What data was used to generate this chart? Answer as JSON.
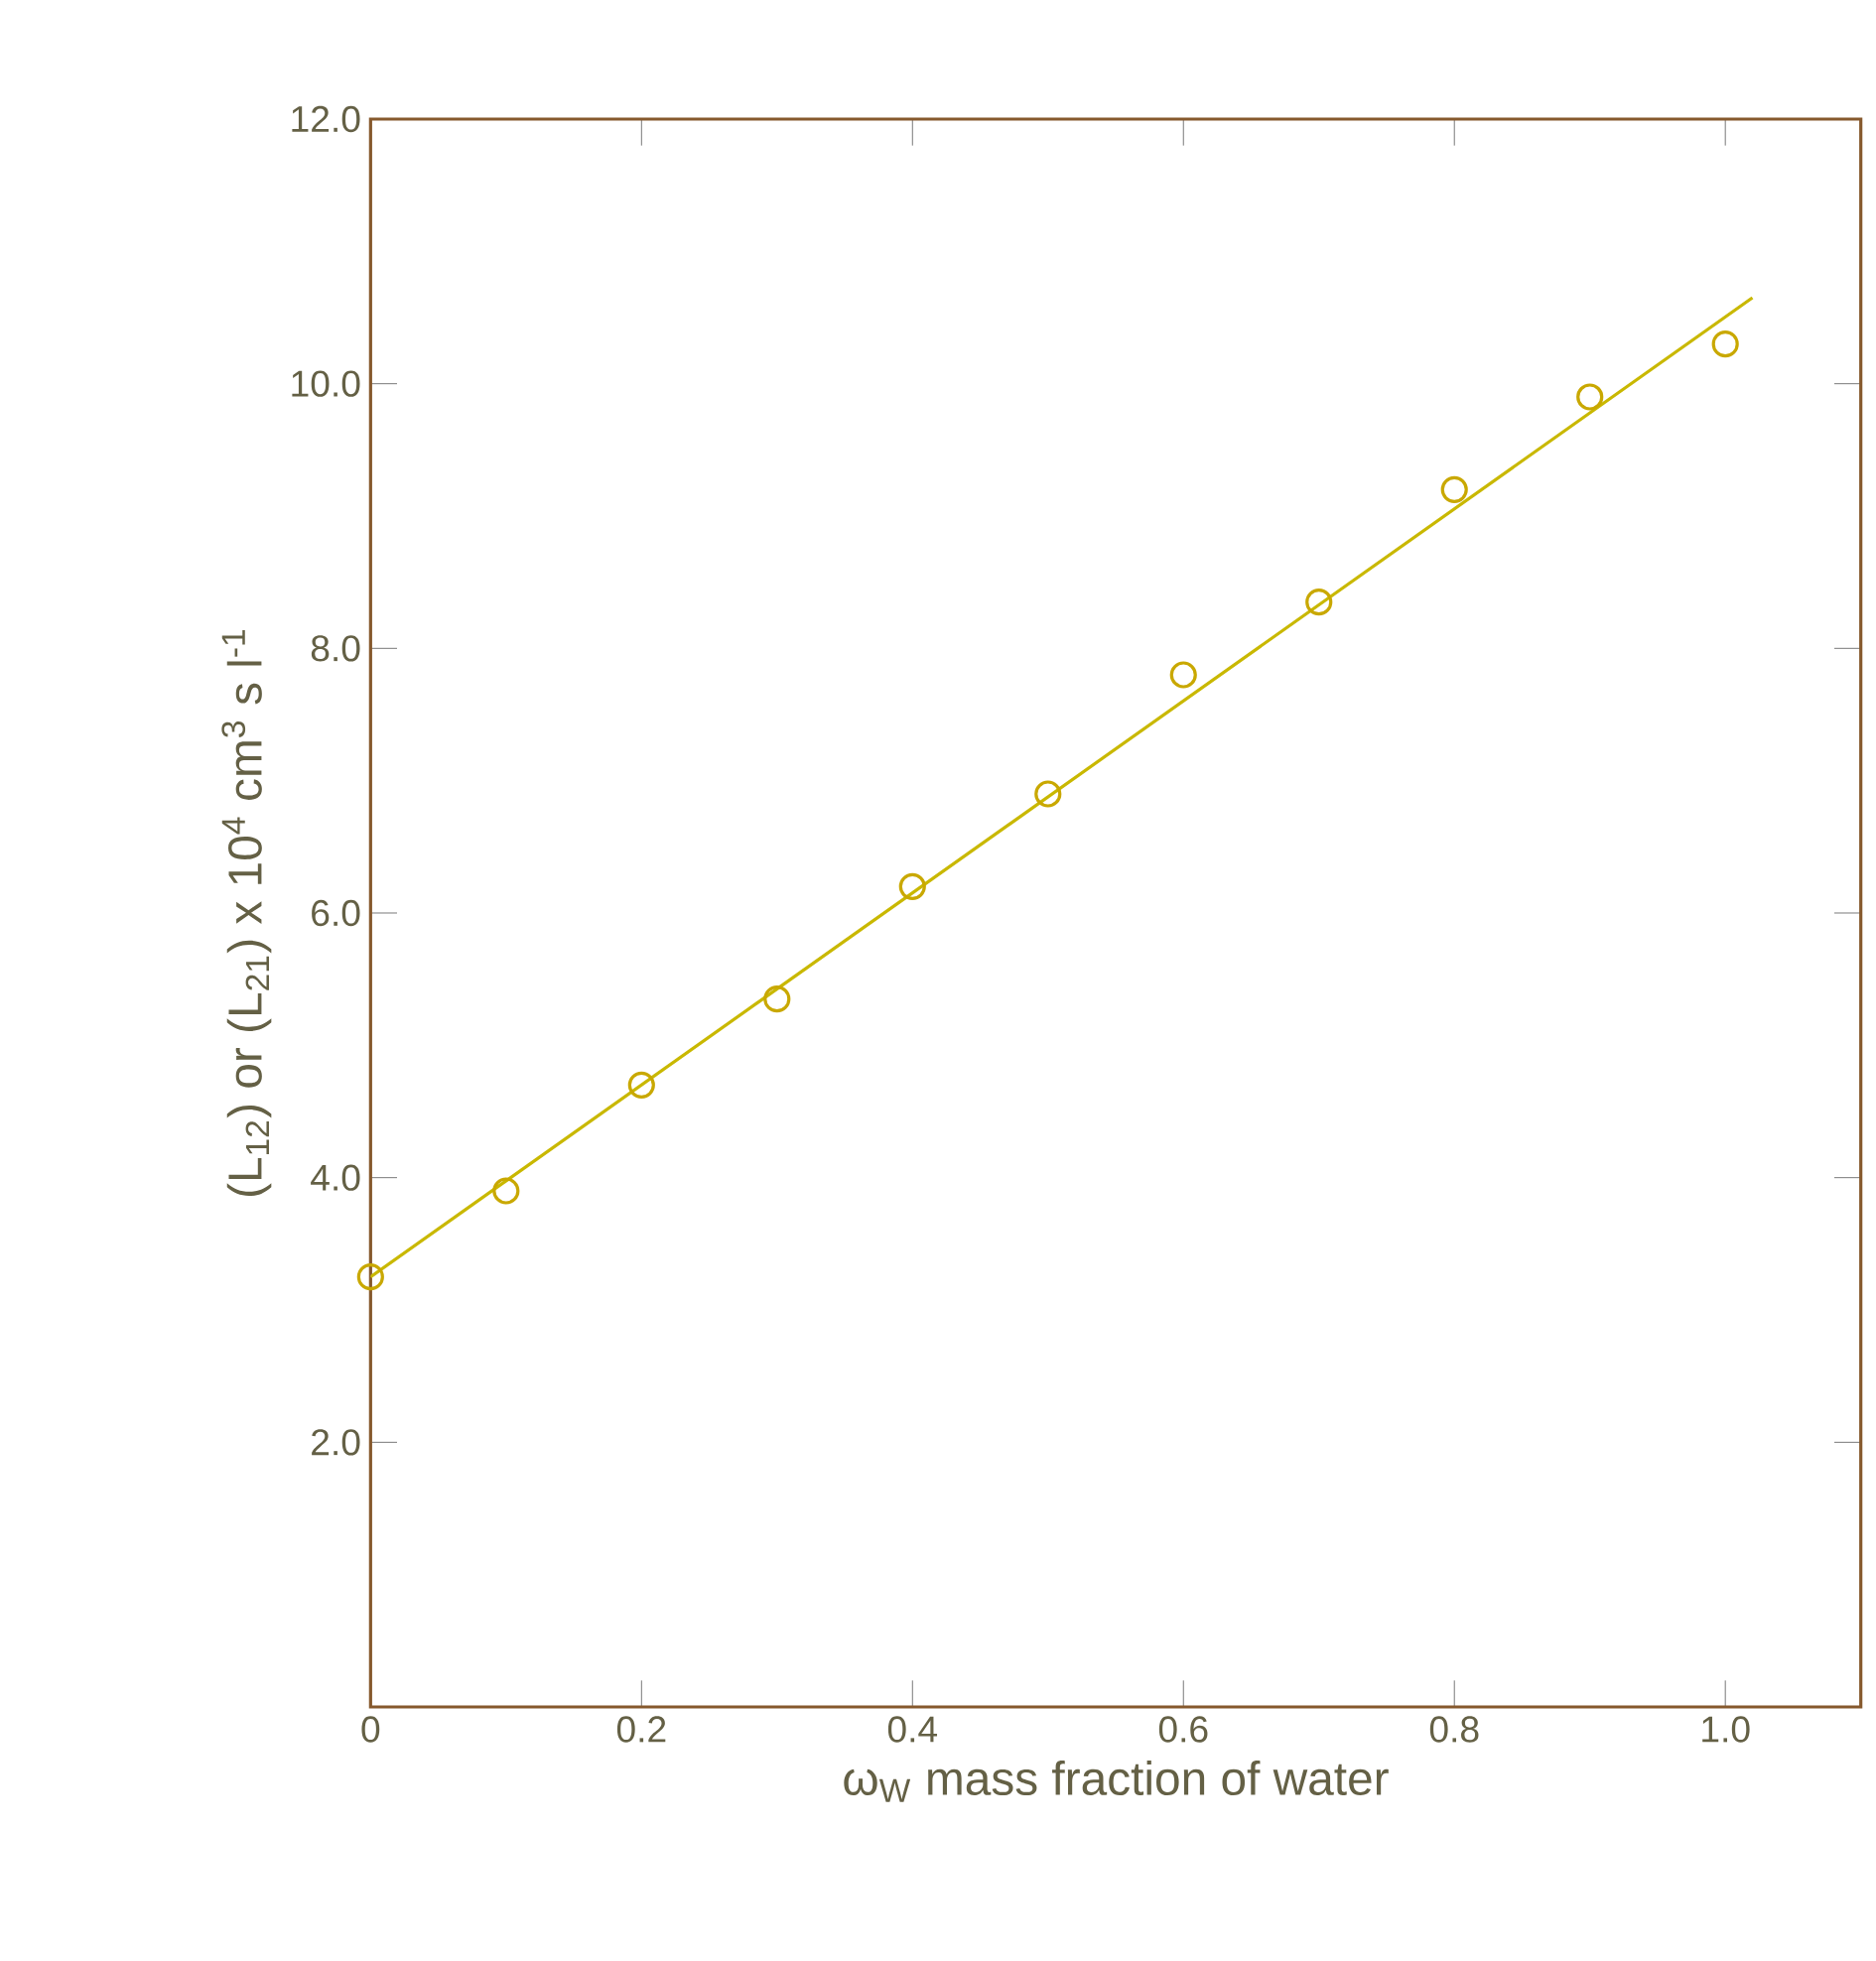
{
  "chart_data": {
    "type": "scatter",
    "xlabel": "ω$_{W}$  mass fraction of water",
    "ylabel": "(L$_{12}$) or (L$_{21}$) x 10$^{4}$ cm$^{3}$ s l$^{-1}$",
    "xlim": [
      0,
      1.1
    ],
    "ylim": [
      0,
      12
    ],
    "xticks": [
      0,
      0.2,
      0.4,
      0.6,
      {
        "value": 0.8,
        "label": "0.8"
      },
      {
        "value": 1,
        "label": "1.0"
      }
    ],
    "yticks": [
      {
        "value": 2,
        "label": "2.0"
      },
      {
        "value": 4,
        "label": "4.0"
      },
      {
        "value": 6,
        "label": "6.0"
      },
      {
        "value": 8,
        "label": "8.0"
      },
      {
        "value": 10,
        "label": "10.0"
      },
      {
        "value": 12,
        "label": "12.0"
      }
    ],
    "grid": false,
    "marker": "circle",
    "series": [
      {
        "color": "#c9a800",
        "x": [
          0,
          0.1,
          0.2,
          0.3,
          0.4,
          0.5,
          0.6,
          0.7,
          0.8,
          0.9,
          1.0
        ],
        "values": [
          3.25,
          3.9,
          4.7,
          5.35,
          6.2,
          6.9,
          7.8,
          8.35,
          9.2,
          9.9,
          10.3
        ]
      },
      {
        "type": "line",
        "marker": "none",
        "color": "#c9b800",
        "x": [
          0,
          1.02
        ],
        "values": [
          3.25,
          10.65
        ]
      }
    ]
  }
}
